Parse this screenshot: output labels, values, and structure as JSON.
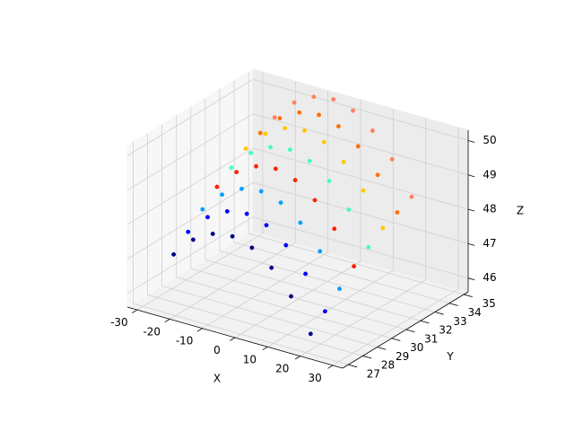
{
  "chart_data": {
    "type": "scatter3d",
    "xlabel": "X",
    "ylabel": "Y",
    "zlabel": "Z",
    "xlim": [
      -33,
      33
    ],
    "xticks": [
      -30,
      -20,
      -10,
      0,
      10,
      20,
      30
    ],
    "ylim": [
      26.6,
      35.3
    ],
    "yticks": [
      27,
      28,
      29,
      30,
      31,
      32,
      33,
      34,
      35
    ],
    "zlim": [
      45.6,
      50.3
    ],
    "zticks": [
      46,
      47,
      48,
      49,
      50
    ],
    "grid": true,
    "series": [
      {
        "color": "#00008b",
        "x": [
          -25,
          -19,
          -13,
          -7,
          -1,
          5,
          11,
          17
        ],
        "y": [
          28,
          28,
          28,
          28,
          28,
          28,
          28,
          28
        ],
        "z": [
          46.99,
          47.58,
          47.91,
          48.0,
          47.83,
          47.41,
          46.74,
          45.81
        ]
      },
      {
        "color": "#0000ff",
        "x": [
          -25,
          -19,
          -13,
          -7,
          -1,
          5,
          11,
          17
        ],
        "y": [
          29,
          29,
          29,
          29,
          29,
          29,
          29,
          29
        ],
        "z": [
          47.39,
          47.98,
          48.31,
          48.4,
          48.23,
          47.81,
          47.14,
          46.21
        ]
      },
      {
        "color": "#00a0ff",
        "x": [
          -25,
          -19,
          -13,
          -7,
          -1,
          5,
          11,
          17
        ],
        "y": [
          30,
          30,
          30,
          30,
          30,
          30,
          30,
          30
        ],
        "z": [
          47.79,
          48.38,
          48.71,
          48.8,
          48.63,
          48.21,
          47.54,
          46.61
        ]
      },
      {
        "color": "#ff2000",
        "x": [
          -25,
          -19,
          -13,
          -7,
          -1,
          5,
          11,
          17
        ],
        "y": [
          31,
          31,
          31,
          31,
          31,
          31,
          31,
          31
        ],
        "z": [
          48.19,
          48.78,
          49.11,
          49.2,
          49.03,
          48.61,
          47.94,
          47.01
        ]
      },
      {
        "color": "#40ffc0",
        "x": [
          -25,
          -19,
          -13,
          -7,
          -1,
          5,
          11,
          17
        ],
        "y": [
          32,
          32,
          32,
          32,
          32,
          32,
          32,
          32
        ],
        "z": [
          48.49,
          49.08,
          49.41,
          49.5,
          49.33,
          48.91,
          48.24,
          47.31
        ]
      },
      {
        "color": "#ffc800",
        "x": [
          -25,
          -19,
          -13,
          -7,
          -1,
          5,
          11,
          17
        ],
        "y": [
          33,
          33,
          33,
          33,
          33,
          33,
          33,
          33
        ],
        "z": [
          48.79,
          49.38,
          49.71,
          49.8,
          49.63,
          49.21,
          48.54,
          47.61
        ]
      },
      {
        "color": "#ff7000",
        "x": [
          -25,
          -19,
          -13,
          -7,
          -1,
          5,
          11,
          17
        ],
        "y": [
          34,
          34,
          34,
          34,
          34,
          34,
          34,
          34
        ],
        "z": [
          48.99,
          49.58,
          49.91,
          50.0,
          49.83,
          49.41,
          48.74,
          47.81
        ]
      },
      {
        "color": "#ff8060",
        "x": [
          -25,
          -19,
          -13,
          -7,
          -1,
          5,
          11,
          17
        ],
        "y": [
          35,
          35,
          35,
          35,
          35,
          35,
          35,
          35
        ],
        "z": [
          49.19,
          49.78,
          50.11,
          50.2,
          50.03,
          49.61,
          48.94,
          48.01
        ]
      }
    ]
  }
}
